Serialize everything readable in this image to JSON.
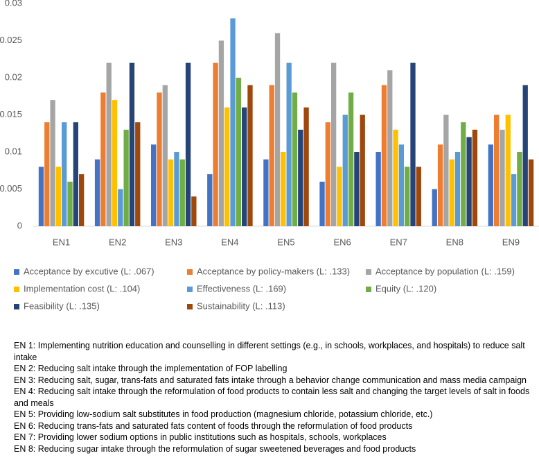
{
  "chart_data": {
    "type": "bar",
    "categories": [
      "EN1",
      "EN2",
      "EN3",
      "EN4",
      "EN5",
      "EN6",
      "EN7",
      "EN8",
      "EN9"
    ],
    "series": [
      {
        "name": "Acceptance by excutive (L: .067)",
        "color": "#4472c4",
        "values": [
          0.008,
          0.009,
          0.011,
          0.007,
          0.009,
          0.006,
          0.01,
          0.005,
          0.011
        ]
      },
      {
        "name": "Acceptance by policy-makers (L: .133)",
        "color": "#ed7d31",
        "values": [
          0.014,
          0.018,
          0.018,
          0.022,
          0.019,
          0.014,
          0.019,
          0.011,
          0.015
        ]
      },
      {
        "name": "Acceptance by population (L: .159)",
        "color": "#a5a5a5",
        "values": [
          0.017,
          0.022,
          0.019,
          0.025,
          0.026,
          0.022,
          0.021,
          0.015,
          0.013
        ]
      },
      {
        "name": "Implementation cost (L: .104)",
        "color": "#ffc000",
        "values": [
          0.008,
          0.017,
          0.009,
          0.016,
          0.01,
          0.008,
          0.013,
          0.009,
          0.015
        ]
      },
      {
        "name": "Effectiveness (L: .169)",
        "color": "#5b9bd5",
        "values": [
          0.014,
          0.005,
          0.01,
          0.028,
          0.022,
          0.015,
          0.011,
          0.01,
          0.007
        ]
      },
      {
        "name": "Equity (L: .120)",
        "color": "#70ad47",
        "values": [
          0.006,
          0.013,
          0.009,
          0.02,
          0.018,
          0.018,
          0.008,
          0.014,
          0.01
        ]
      },
      {
        "name": "Feasibility (L: .135)",
        "color": "#264478",
        "values": [
          0.014,
          0.022,
          0.022,
          0.016,
          0.013,
          0.01,
          0.022,
          0.012,
          0.019
        ]
      },
      {
        "name": "Sustainability (L: .113)",
        "color": "#9e480e",
        "values": [
          0.007,
          0.014,
          0.004,
          0.019,
          0.016,
          0.015,
          0.008,
          0.013,
          0.009
        ]
      }
    ],
    "ylim": [
      0,
      0.03
    ],
    "yticks": [
      0,
      0.005,
      0.01,
      0.015,
      0.02,
      0.025,
      0.03
    ],
    "grid": false,
    "legend": "bottom"
  },
  "notes": [
    "EN 1: Implementing nutrition education and counselling in different settings (e.g., in schools, workplaces, and hospitals) to reduce salt intake",
    "EN 2: Reducing salt intake through the implementation of FOP labelling",
    "EN 3: Reducing salt, sugar, trans-fats and saturated fats intake through a behavior change communication and mass media campaign",
    "EN 4: Reducing salt intake through the reformulation of food products to contain less salt and changing the target levels of salt in foods and meals",
    "EN 5: Providing low-sodium salt substitutes in food production (magnesium chloride, potassium chloride, etc.)",
    "EN 6: Reducing trans-fats and saturated fats content of foods through the reformulation of food products",
    "EN 7: Providing lower sodium options in public institutions such as hospitals, schools, workplaces",
    "EN 8: Reducing sugar intake through the reformulation of sugar sweetened beverages and food products"
  ]
}
